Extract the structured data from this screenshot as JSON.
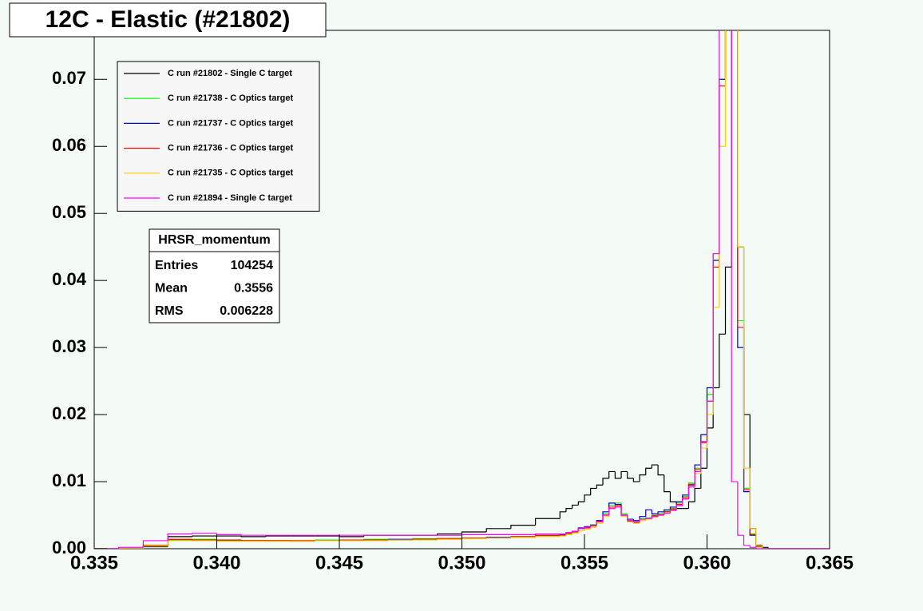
{
  "chart_data": {
    "type": "histogram",
    "title": "12C - Elastic (#21802)",
    "bins": [
      0.335,
      0.336,
      0.337,
      0.338,
      0.339,
      0.34,
      0.341,
      0.342,
      0.343,
      0.344,
      0.345,
      0.346,
      0.347,
      0.348,
      0.349,
      0.35,
      0.351,
      0.352,
      0.353,
      0.354,
      0.35425,
      0.3545,
      0.35475,
      0.355,
      0.35525,
      0.3555,
      0.35575,
      0.356,
      0.35625,
      0.3565,
      0.35675,
      0.357,
      0.35725,
      0.3575,
      0.35775,
      0.358,
      0.35825,
      0.3585,
      0.35875,
      0.359,
      0.35925,
      0.3595,
      0.35975,
      0.36,
      0.36025,
      0.3605,
      0.36075,
      0.361,
      0.36125,
      0.3615,
      0.36175,
      0.362,
      0.36225,
      0.3625,
      0.365
    ],
    "series": [
      {
        "name": "C run #21802 - Single C target",
        "color": "#000000",
        "values": [
          0,
          0,
          0.0003,
          0.0018,
          0.0019,
          0.0019,
          0.0018,
          0.0019,
          0.0019,
          0.0019,
          0.0018,
          0.002,
          0.002,
          0.002,
          0.0022,
          0.0025,
          0.003,
          0.0035,
          0.0045,
          0.0055,
          0.006,
          0.0065,
          0.007,
          0.008,
          0.009,
          0.0095,
          0.0105,
          0.0115,
          0.0105,
          0.0115,
          0.0105,
          0.01,
          0.011,
          0.012,
          0.0125,
          0.011,
          0.0085,
          0.007,
          0.006,
          0.006,
          0.007,
          0.009,
          0.012,
          0.018,
          0.024,
          0.032,
          0.042,
          0.08,
          0.045,
          0.02,
          0.003,
          0.0005,
          0.0002,
          0
        ]
      },
      {
        "name": "C run #21738 - C Optics target",
        "color": "#00ff00",
        "values": [
          0,
          0,
          0.0005,
          0.0013,
          0.0014,
          0.0012,
          0.0012,
          0.0011,
          0.0012,
          0.0013,
          0.0012,
          0.0014,
          0.0013,
          0.0015,
          0.0014,
          0.0016,
          0.0016,
          0.0018,
          0.0019,
          0.002,
          0.0022,
          0.0025,
          0.003,
          0.0032,
          0.0036,
          0.004,
          0.0052,
          0.0065,
          0.0068,
          0.0052,
          0.0042,
          0.004,
          0.0045,
          0.0046,
          0.005,
          0.0052,
          0.0056,
          0.006,
          0.0068,
          0.0078,
          0.0098,
          0.012,
          0.016,
          0.023,
          0.044,
          0.07,
          0.08,
          0.08,
          0.034,
          0.009,
          0.0022,
          0.0003,
          0,
          0
        ]
      },
      {
        "name": "C run #21737 - C Optics target",
        "color": "#0000cc",
        "values": [
          0,
          0,
          0.0004,
          0.0012,
          0.0013,
          0.0013,
          0.0012,
          0.0012,
          0.0011,
          0.0012,
          0.0013,
          0.0013,
          0.0014,
          0.0014,
          0.0015,
          0.0015,
          0.0017,
          0.0017,
          0.002,
          0.0021,
          0.0024,
          0.0026,
          0.0031,
          0.0033,
          0.0035,
          0.0042,
          0.0055,
          0.0068,
          0.0066,
          0.005,
          0.0044,
          0.0042,
          0.0048,
          0.0058,
          0.0052,
          0.0055,
          0.0058,
          0.0062,
          0.007,
          0.008,
          0.0095,
          0.0125,
          0.017,
          0.024,
          0.043,
          0.07,
          0.08,
          0.08,
          0.03,
          0.0085,
          0.002,
          0.0003,
          0,
          0
        ]
      },
      {
        "name": "C run #21736 - C Optics target",
        "color": "#ff0000",
        "values": [
          0,
          0,
          0.0005,
          0.0014,
          0.0013,
          0.0013,
          0.0012,
          0.0012,
          0.0012,
          0.0012,
          0.0013,
          0.0013,
          0.0013,
          0.0014,
          0.0015,
          0.0016,
          0.0016,
          0.0018,
          0.002,
          0.002,
          0.0023,
          0.0025,
          0.003,
          0.0031,
          0.0034,
          0.0041,
          0.005,
          0.0062,
          0.0064,
          0.005,
          0.0041,
          0.0039,
          0.0044,
          0.0045,
          0.0049,
          0.0051,
          0.0055,
          0.0059,
          0.0066,
          0.0076,
          0.0096,
          0.0118,
          0.0158,
          0.022,
          0.042,
          0.069,
          0.08,
          0.08,
          0.033,
          0.0088,
          0.0021,
          0.0003,
          0,
          0
        ]
      },
      {
        "name": "C run #21735 - C Optics target",
        "color": "#ffcc00",
        "values": [
          0,
          0,
          0.0004,
          0.0012,
          0.0012,
          0.0011,
          0.0011,
          0.0011,
          0.0011,
          0.0012,
          0.0012,
          0.0012,
          0.0013,
          0.0013,
          0.0014,
          0.0015,
          0.0016,
          0.0017,
          0.0018,
          0.0019,
          0.0021,
          0.0023,
          0.0027,
          0.0029,
          0.0032,
          0.0038,
          0.0048,
          0.006,
          0.0062,
          0.0048,
          0.004,
          0.0038,
          0.0042,
          0.0044,
          0.0047,
          0.005,
          0.0053,
          0.0057,
          0.0064,
          0.0074,
          0.0092,
          0.0112,
          0.015,
          0.02,
          0.036,
          0.06,
          0.08,
          0.08,
          0.045,
          0.012,
          0.003,
          0.0004,
          0,
          0
        ]
      },
      {
        "name": "C run #21894 - Single C target",
        "color": "#ff00ff",
        "values": [
          0,
          0.0002,
          0.0012,
          0.0022,
          0.0023,
          0.0021,
          0.002,
          0.002,
          0.002,
          0.002,
          0.002,
          0.002,
          0.002,
          0.002,
          0.002,
          0.0021,
          0.0021,
          0.0021,
          0.0022,
          0.0022,
          0.0024,
          0.0026,
          0.003,
          0.0032,
          0.0035,
          0.004,
          0.005,
          0.006,
          0.0062,
          0.005,
          0.0042,
          0.004,
          0.0044,
          0.0045,
          0.0048,
          0.005,
          0.0053,
          0.0057,
          0.0064,
          0.0074,
          0.0092,
          0.0115,
          0.016,
          0.022,
          0.044,
          0.08,
          0.08,
          0.01,
          0.002,
          0.0005,
          0.0002,
          0,
          0,
          0
        ]
      }
    ],
    "xlim": [
      0.335,
      0.365
    ],
    "ylim": [
      0,
      0.0773
    ],
    "xticks": [
      0.335,
      {
        "value": 0.34,
        "label": "0.340"
      },
      0.345,
      {
        "value": 0.35,
        "label": "0.350"
      },
      0.355,
      {
        "value": 0.36,
        "label": "0.360"
      },
      0.365
    ],
    "yticks": [
      {
        "value": 0,
        "label": "0.00"
      },
      0.01,
      0.02,
      0.03,
      0.04,
      0.05,
      0.06,
      0.07
    ],
    "legend": "upper-left",
    "stats": {
      "title": "HRSR_momentum",
      "rows": [
        [
          "Entries",
          104254
        ],
        [
          "Mean",
          0.3556
        ],
        [
          "RMS",
          0.006228
        ]
      ]
    }
  }
}
